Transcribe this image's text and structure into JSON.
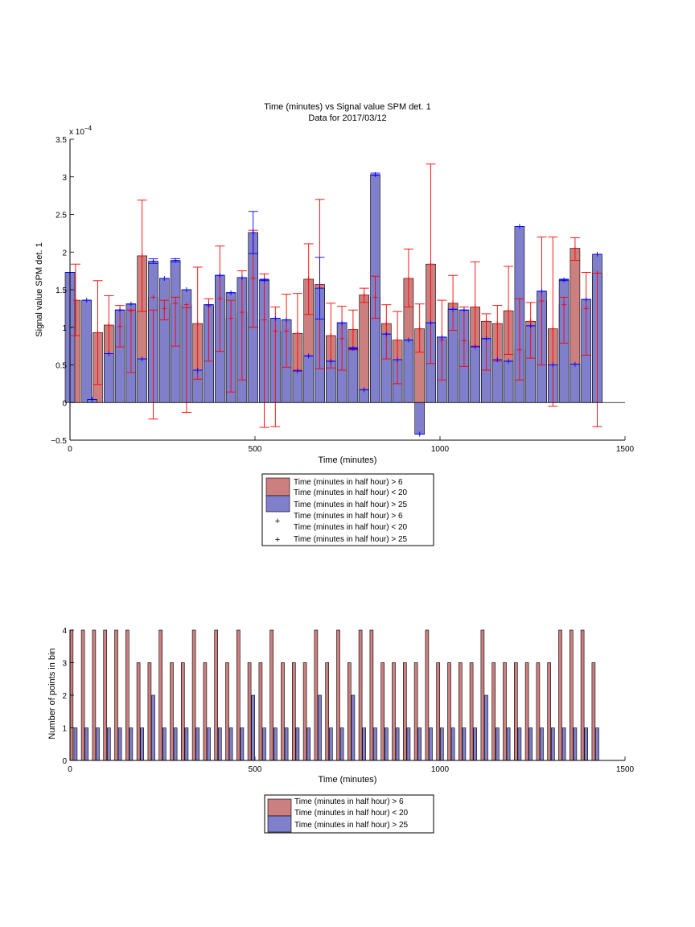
{
  "chart_data": [
    {
      "type": "bar",
      "title": "Time (minutes) vs Signal value SPM det. 1",
      "subtitle": "Data for 2017/03/12",
      "xlabel": "Time (minutes)",
      "ylabel": "Signal value SPM det. 1",
      "y_multiplier_label": "x 10",
      "y_multiplier_exp": "−4",
      "xlim": [
        0,
        1500
      ],
      "ylim": [
        -0.5,
        3.5
      ],
      "y_scale": 0.0001,
      "xticks": [
        "0",
        "500",
        "1000",
        "1500"
      ],
      "yticks": [
        "−0.5",
        "0",
        "0.5",
        "1",
        "1.5",
        "2",
        "2.5",
        "3",
        "3.5"
      ],
      "grid": false,
      "legend_position": "below",
      "legend": [
        {
          "label": "Time (minutes in half hour) > 6",
          "label2": "Time (minutes in half hour) < 20",
          "kind": "bar",
          "color": "#cc7f7f"
        },
        {
          "label": "Time (minutes in half hour) > 25",
          "kind": "bar",
          "color": "#7f7fcc"
        },
        {
          "label": "Time (minutes in half hour) > 6",
          "label2": "Time (minutes in half hour) < 20",
          "kind": "marker",
          "color": "#ff0000"
        },
        {
          "label": "Time (minutes in half hour) > 25",
          "kind": "marker",
          "color": "#0000ff"
        }
      ],
      "series": [
        {
          "name": "Time (minutes in half hour) > 6 Time (minutes in half hour) < 20",
          "color": "#cc7f7f",
          "errorbar_color": "#ff0000",
          "x": [
            15,
            75,
            105,
            135,
            165,
            195,
            225,
            255,
            285,
            315,
            345,
            375,
            405,
            435,
            465,
            495,
            525,
            555,
            585,
            615,
            645,
            675,
            705,
            735,
            765,
            795,
            825,
            855,
            885,
            915,
            945,
            975,
            1005,
            1035,
            1065,
            1095,
            1125,
            1155,
            1185,
            1215,
            1245,
            1275,
            1305,
            1335,
            1365,
            1395,
            1425
          ],
          "values": [
            1.36,
            0.93,
            1.03,
            1.01,
            1.22,
            1.95,
            1.4,
            1.25,
            1.32,
            1.3,
            1.05,
            1.28,
            1.38,
            1.12,
            1.2,
            1.65,
            1.1,
            0.95,
            0.95,
            0.92,
            1.64,
            1.57,
            0.89,
            0.85,
            0.97,
            1.43,
            1.4,
            1.05,
            0.83,
            1.65,
            0.98,
            1.84,
            0.83,
            1.32,
            0.82,
            1.27,
            1.08,
            1.05,
            1.22,
            0.7,
            1.08,
            1.35,
            0.98,
            1.3,
            2.05,
            1.25,
            1.72
          ],
          "err_low": [
            0.89,
            0.24,
            0.65,
            0.74,
            0.4,
            1.21,
            -0.22,
            1.1,
            0.75,
            -0.13,
            0.31,
            0.55,
            0.68,
            0.14,
            0.3,
            1.0,
            -0.33,
            -0.32,
            0.47,
            0.43,
            1.17,
            0.45,
            0.46,
            0.43,
            0.7,
            1.33,
            1.12,
            0.58,
            0.25,
            1.27,
            0.67,
            0.52,
            0.3,
            0.96,
            0.48,
            0.75,
            0.43,
            0.55,
            0.64,
            0.3,
            0.59,
            0.5,
            -0.05,
            0.79,
            1.89,
            0.63,
            -0.32
          ],
          "err_high": [
            1.84,
            1.62,
            1.42,
            1.29,
            1.23,
            2.69,
            1.23,
            1.36,
            1.4,
            1.26,
            1.8,
            1.38,
            2.08,
            1.36,
            1.75,
            2.29,
            1.71,
            1.27,
            1.44,
            1.45,
            2.11,
            2.7,
            1.32,
            1.28,
            1.23,
            1.52,
            1.68,
            1.3,
            1.21,
            2.04,
            1.31,
            3.17,
            1.36,
            1.69,
            1.27,
            1.87,
            1.18,
            1.29,
            1.81,
            1.38,
            1.33,
            2.2,
            2.2,
            1.4,
            2.19,
            1.73,
            1.72
          ]
        },
        {
          "name": "Time (minutes in half hour) > 25",
          "color": "#7f7fcc",
          "errorbar_color": "#0000ff",
          "x": [
            0,
            45,
            60,
            105,
            135,
            165,
            195,
            225,
            255,
            285,
            315,
            345,
            375,
            405,
            435,
            465,
            495,
            525,
            555,
            585,
            615,
            645,
            675,
            705,
            735,
            765,
            795,
            825,
            855,
            885,
            915,
            945,
            975,
            1005,
            1035,
            1065,
            1095,
            1125,
            1155,
            1185,
            1215,
            1245,
            1275,
            1305,
            1335,
            1365,
            1395,
            1425
          ],
          "values": [
            1.73,
            1.36,
            0.04,
            0.65,
            1.23,
            1.31,
            0.58,
            1.88,
            1.65,
            1.89,
            1.5,
            0.43,
            1.3,
            1.69,
            1.46,
            1.66,
            2.26,
            1.63,
            1.12,
            1.1,
            0.42,
            0.62,
            1.52,
            0.55,
            1.06,
            0.72,
            0.17,
            3.03,
            0.91,
            0.57,
            0.83,
            -0.42,
            1.06,
            0.87,
            1.24,
            1.23,
            0.74,
            0.85,
            0.57,
            0.55,
            2.34,
            1.02,
            1.48,
            0.5,
            1.63,
            0.51,
            1.37,
            1.97
          ],
          "err_low": [
            1.73,
            1.36,
            0.04,
            0.65,
            1.23,
            1.31,
            0.58,
            1.85,
            1.65,
            1.87,
            1.5,
            0.43,
            1.3,
            1.69,
            1.46,
            1.66,
            1.98,
            1.62,
            1.12,
            1.1,
            0.42,
            0.62,
            1.11,
            0.55,
            1.06,
            0.71,
            0.17,
            3.02,
            0.91,
            0.57,
            0.83,
            -0.42,
            1.06,
            0.87,
            1.24,
            1.23,
            0.74,
            0.85,
            0.57,
            0.55,
            2.34,
            1.02,
            1.48,
            0.5,
            1.62,
            0.51,
            1.37,
            1.97
          ],
          "err_high": [
            1.73,
            1.36,
            0.04,
            0.65,
            1.23,
            1.31,
            0.58,
            1.91,
            1.65,
            1.91,
            1.5,
            0.43,
            1.3,
            1.69,
            1.46,
            1.66,
            2.54,
            1.64,
            1.12,
            1.1,
            0.42,
            0.62,
            1.93,
            0.55,
            1.06,
            0.73,
            0.17,
            3.05,
            0.91,
            0.57,
            0.83,
            -0.42,
            1.06,
            0.87,
            1.24,
            1.23,
            0.74,
            0.85,
            0.57,
            0.55,
            2.34,
            1.02,
            1.48,
            0.5,
            1.64,
            0.51,
            1.37,
            1.97
          ]
        }
      ]
    },
    {
      "type": "bar",
      "xlabel": "Time (minutes)",
      "ylabel": "Number of points in bin",
      "xlim": [
        0,
        1500
      ],
      "ylim": [
        0,
        4
      ],
      "xticks": [
        "0",
        "500",
        "1000",
        "1500"
      ],
      "yticks": [
        "0",
        "1",
        "2",
        "3",
        "4"
      ],
      "grid": false,
      "legend_position": "below",
      "legend": [
        {
          "label": "Time (minutes in half hour) > 6",
          "label2": "Time (minutes in half hour) < 20",
          "kind": "bar",
          "color": "#cc7f7f"
        },
        {
          "label": "Time (minutes in half hour) > 25",
          "kind": "bar",
          "color": "#7f7fcc"
        }
      ],
      "series": [
        {
          "name": "Time (minutes in half hour) > 6 Time (minutes in half hour) < 20",
          "color": "#cc7f7f",
          "x": [
            4,
            35,
            65,
            95,
            125,
            155,
            185,
            215,
            245,
            275,
            305,
            335,
            365,
            395,
            425,
            455,
            485,
            515,
            545,
            575,
            605,
            635,
            665,
            695,
            725,
            755,
            785,
            815,
            845,
            875,
            905,
            935,
            965,
            995,
            1025,
            1055,
            1085,
            1115,
            1145,
            1175,
            1205,
            1235,
            1265,
            1295,
            1325,
            1355,
            1385,
            1415
          ],
          "values": [
            4,
            4,
            4,
            4,
            4,
            4,
            3,
            3,
            4,
            3,
            3,
            4,
            3,
            4,
            3,
            4,
            3,
            3,
            4,
            3,
            3,
            3,
            4,
            3,
            4,
            3,
            4,
            4,
            3,
            3,
            3,
            3,
            4,
            3,
            3,
            3,
            3,
            4,
            3,
            3,
            3,
            3,
            3,
            3,
            4,
            4,
            4,
            3
          ]
        },
        {
          "name": "Time (minutes in half hour) > 25",
          "color": "#7f7fcc",
          "x": [
            15,
            45,
            75,
            105,
            135,
            165,
            195,
            225,
            255,
            285,
            315,
            345,
            375,
            405,
            435,
            465,
            495,
            525,
            555,
            585,
            615,
            645,
            675,
            705,
            735,
            765,
            795,
            825,
            855,
            885,
            915,
            945,
            975,
            1005,
            1035,
            1065,
            1095,
            1125,
            1155,
            1185,
            1215,
            1245,
            1275,
            1305,
            1335,
            1365,
            1395,
            1425
          ],
          "values": [
            1,
            1,
            1,
            1,
            1,
            1,
            1,
            2,
            1,
            1,
            1,
            1,
            1,
            1,
            1,
            1,
            2,
            1,
            1,
            1,
            1,
            1,
            2,
            1,
            1,
            2,
            1,
            1,
            1,
            1,
            1,
            1,
            1,
            1,
            1,
            1,
            1,
            2,
            1,
            1,
            1,
            1,
            1,
            1,
            1,
            1,
            1,
            1
          ]
        }
      ]
    }
  ]
}
